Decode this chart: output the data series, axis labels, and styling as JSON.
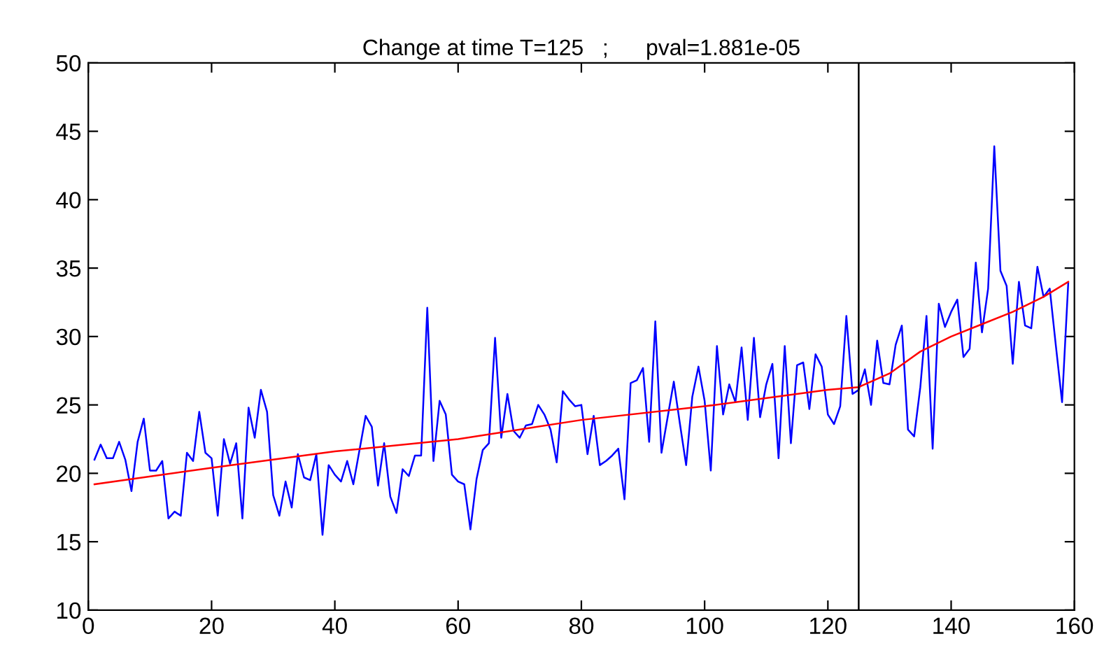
{
  "chart_data": {
    "type": "line",
    "title": "Change at time T=125   ;      pval=1.881e-05",
    "series": [
      {
        "color": "#0000ff",
        "x": [
          1,
          2,
          3,
          4,
          5,
          6,
          7,
          8,
          9,
          10,
          11,
          12,
          13,
          14,
          15,
          16,
          17,
          18,
          19,
          20,
          21,
          22,
          23,
          24,
          25,
          26,
          27,
          28,
          29,
          30,
          31,
          32,
          33,
          34,
          35,
          36,
          37,
          38,
          39,
          40,
          41,
          42,
          43,
          45,
          46,
          47,
          48,
          49,
          50,
          51,
          52,
          53,
          54,
          55,
          56,
          57,
          58,
          59,
          60,
          61,
          62,
          63,
          64,
          65,
          66,
          67,
          68,
          69,
          70,
          71,
          72,
          73,
          74,
          75,
          76,
          77,
          78,
          79,
          80,
          81,
          82,
          83,
          84,
          85,
          86,
          87,
          88,
          89,
          90,
          91,
          92,
          93,
          94,
          95,
          96,
          97,
          98,
          99,
          100,
          101,
          102,
          103,
          104,
          105,
          106,
          107,
          108,
          109,
          110,
          111,
          112,
          113,
          114,
          115,
          116,
          117,
          118,
          119,
          120,
          121,
          122,
          123,
          124,
          125,
          126,
          127,
          128,
          129,
          130,
          131,
          132,
          133,
          134,
          135,
          136,
          137,
          138,
          139,
          140,
          141,
          142,
          143,
          144,
          145,
          146,
          147,
          148,
          149,
          150,
          151,
          152,
          153,
          154,
          155,
          156,
          157,
          158,
          159
        ],
        "values": [
          21.0,
          22.1,
          21.1,
          21.1,
          22.3,
          21.0,
          18.7,
          22.3,
          24.0,
          20.2,
          20.2,
          20.9,
          16.7,
          17.2,
          16.9,
          21.5,
          20.9,
          24.5,
          21.5,
          21.1,
          16.9,
          22.5,
          20.7,
          22.2,
          16.7,
          24.8,
          22.6,
          26.1,
          24.5,
          18.4,
          16.9,
          19.4,
          17.5,
          21.4,
          19.7,
          19.5,
          21.4,
          15.5,
          20.6,
          19.9,
          19.4,
          20.9,
          19.2,
          24.2,
          23.4,
          19.1,
          22.2,
          18.3,
          17.1,
          20.3,
          19.8,
          21.3,
          21.3,
          32.1,
          20.9,
          25.3,
          24.3,
          19.9,
          19.4,
          19.2,
          15.9,
          19.6,
          21.7,
          22.2,
          29.9,
          22.6,
          25.8,
          23.1,
          22.6,
          23.5,
          23.6,
          25.0,
          24.3,
          23.2,
          20.8,
          26.0,
          25.4,
          24.9,
          25.0,
          21.4,
          24.2,
          20.6,
          20.9,
          21.3,
          21.8,
          18.1,
          26.6,
          26.8,
          27.7,
          22.3,
          31.1,
          21.5,
          24.1,
          26.7,
          23.6,
          20.6,
          25.6,
          27.8,
          25.3,
          20.2,
          29.3,
          24.3,
          26.5,
          25.2,
          29.2,
          23.9,
          29.9,
          24.1,
          26.5,
          28.0,
          21.1,
          29.3,
          22.2,
          27.9,
          28.1,
          24.7,
          28.7,
          27.8,
          24.3,
          23.6,
          24.9,
          31.5,
          25.8,
          26.1,
          27.6,
          25.0,
          29.7,
          26.6,
          26.5,
          29.4,
          30.8,
          23.2,
          22.7,
          26.3,
          31.5,
          21.8,
          32.4,
          30.7,
          31.8,
          32.7,
          28.5,
          29.1,
          35.4,
          30.3,
          33.5,
          43.9,
          34.8,
          33.7,
          28.0,
          34.0,
          30.8,
          30.6,
          35.1,
          32.9,
          33.5,
          29.3,
          25.2,
          33.9
        ]
      },
      {
        "color": "#ff0000",
        "x": [
          1,
          20,
          40,
          60,
          80,
          100,
          120,
          125,
          130,
          135,
          140,
          145,
          150,
          155,
          159
        ],
        "values": [
          19.2,
          20.4,
          21.6,
          22.5,
          23.9,
          24.9,
          26.1,
          26.3,
          27.3,
          28.9,
          30.0,
          30.9,
          31.8,
          32.9,
          34.0
        ]
      }
    ],
    "ref_lines": [
      {
        "axis": "x",
        "value": 125,
        "color": "#000000"
      }
    ],
    "xlim": [
      0,
      160
    ],
    "xticks": [
      0,
      20,
      40,
      60,
      80,
      100,
      120,
      140,
      160
    ],
    "ylim": [
      10,
      50
    ],
    "yticks": [
      10,
      15,
      20,
      25,
      30,
      35,
      40,
      45,
      50
    ],
    "grid": false,
    "legend": false,
    "marker": "none",
    "line_style": "solid"
  }
}
